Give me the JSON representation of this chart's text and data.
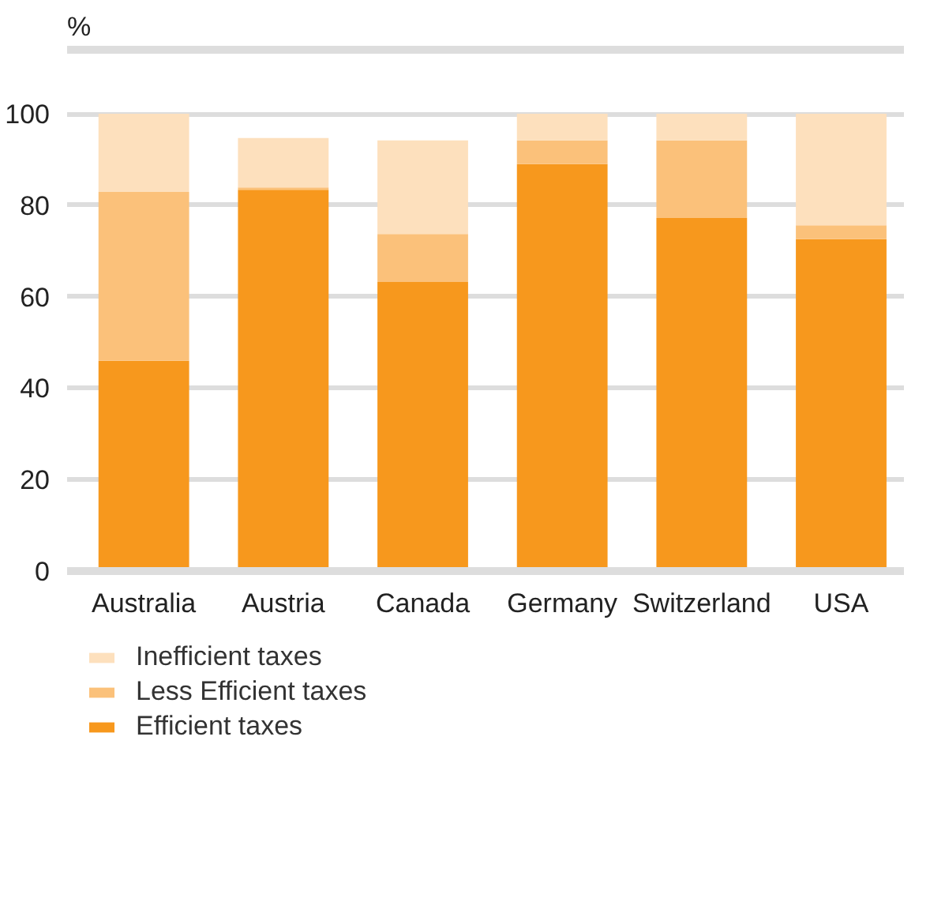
{
  "chart_data": {
    "type": "bar",
    "stacked": true,
    "ylabel": "%",
    "categories": [
      "Australia",
      "Austria",
      "Canada",
      "Germany",
      "Switzerland",
      "USA"
    ],
    "series": [
      {
        "name": "Efficient taxes",
        "color": "#f7981d",
        "values": [
          46,
          83.4,
          63.2,
          89,
          77.2,
          72.6
        ]
      },
      {
        "name": "Less Efficient taxes",
        "color": "#fbc17a",
        "values": [
          36.9,
          0.5,
          10.5,
          5.2,
          17,
          3
        ]
      },
      {
        "name": "Inefficient taxes",
        "color": "#fde0bd",
        "values": [
          17.1,
          10.8,
          20.5,
          5.8,
          5.8,
          24.4
        ]
      }
    ],
    "ylim": [
      0,
      114
    ],
    "yticks": [
      0,
      20,
      40,
      60,
      80,
      100
    ],
    "grid": "y",
    "legend": "bottom left"
  }
}
